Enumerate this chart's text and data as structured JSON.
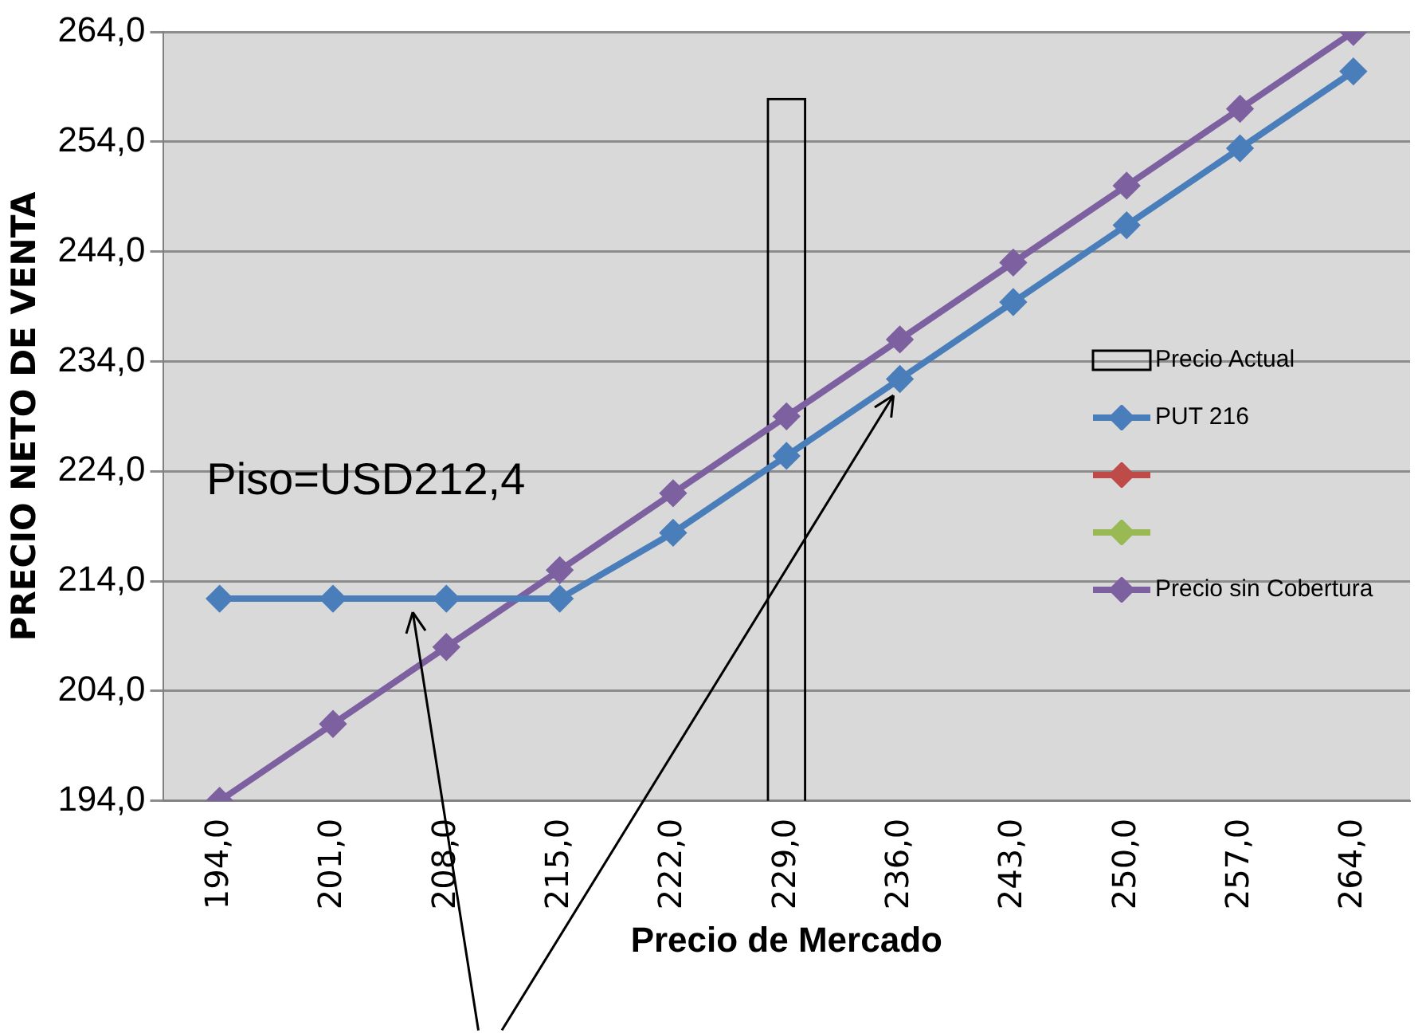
{
  "chart_data": {
    "type": "line",
    "xlabel": "Precio de Mercado",
    "ylabel": "PRECIO NETO DE VENTA",
    "categories": [
      "194,0",
      "201,0",
      "208,0",
      "215,0",
      "222,0",
      "229,0",
      "236,0",
      "243,0",
      "250,0",
      "257,0",
      "264,0"
    ],
    "series": [
      {
        "name": "Precio Actual",
        "type": "bar",
        "color": "#000000",
        "values": [
          null,
          null,
          null,
          null,
          null,
          258,
          null,
          null,
          null,
          null,
          null
        ]
      },
      {
        "name": "PUT 216",
        "color": "#4a7ebb",
        "values": [
          212.4,
          212.4,
          212.4,
          212.4,
          218.4,
          225.4,
          232.4,
          239.4,
          246.4,
          253.4,
          260.4
        ]
      },
      {
        "color": "#be4b48",
        "values": [
          null,
          null,
          null,
          null,
          null,
          null,
          null,
          null,
          null,
          null,
          null
        ]
      },
      {
        "color": "#98b954",
        "values": [
          null,
          null,
          null,
          null,
          null,
          null,
          null,
          null,
          null,
          null,
          null
        ]
      },
      {
        "name": "Precio sin Cobertura",
        "color": "#7d60a0",
        "values": [
          194,
          201,
          208,
          215,
          222,
          229,
          236,
          243,
          250,
          257,
          264
        ]
      }
    ],
    "ylim": [
      194,
      264
    ],
    "yticks": [
      {
        "value": 194,
        "label": "194,0"
      },
      {
        "value": 204,
        "label": "204,0"
      },
      {
        "value": 214,
        "label": "214,0"
      },
      {
        "value": 224,
        "label": "224,0"
      },
      {
        "value": 234,
        "label": "234,0"
      },
      {
        "value": 244,
        "label": "244,0"
      },
      {
        "value": 254,
        "label": "254,0"
      },
      {
        "value": 264,
        "label": "264,0"
      }
    ],
    "grid": "y",
    "legend": "right",
    "marker": "diamond",
    "line_style": "solid",
    "annotations": [
      "Piso=USD212,4"
    ]
  }
}
